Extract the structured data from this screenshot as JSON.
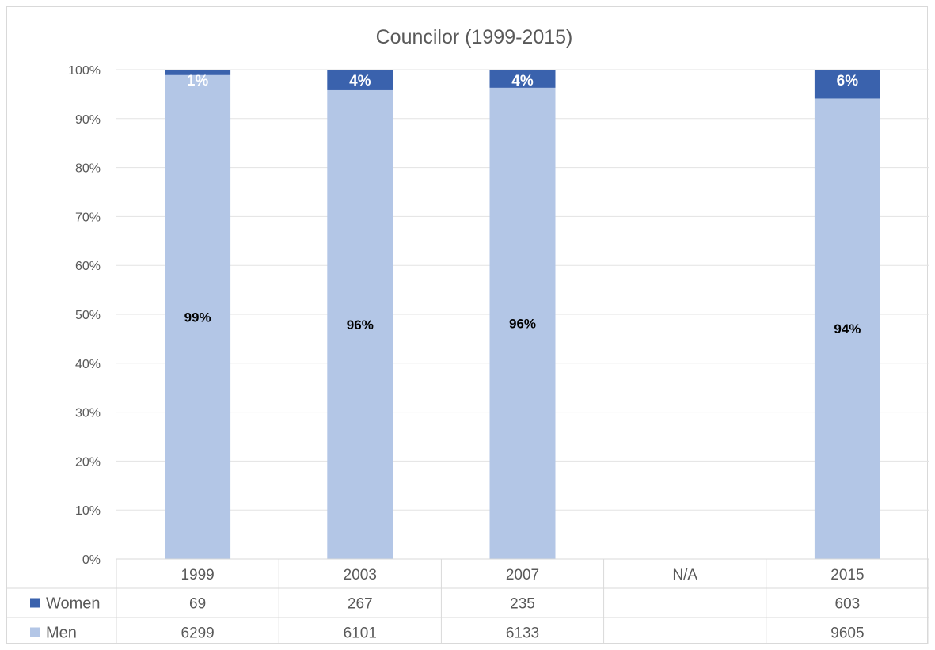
{
  "colors": {
    "women": "#3a62ad",
    "men": "#b3c6e6",
    "grid": "#e3e3e3",
    "text": "#595959"
  },
  "chart_data": {
    "type": "bar",
    "stacked": "percent",
    "title": "Councilor (1999-2015)",
    "categories": [
      "1999",
      "2003",
      "2007",
      "N/A",
      "2015"
    ],
    "y_ticks": [
      "0%",
      "10%",
      "20%",
      "30%",
      "40%",
      "50%",
      "60%",
      "70%",
      "80%",
      "90%",
      "100%"
    ],
    "ylim": [
      0,
      100
    ],
    "grid": true,
    "legend_placement": "data-table",
    "series": [
      {
        "name": "Men",
        "values": [
          6299,
          6101,
          6133,
          null,
          9605
        ],
        "table_values": [
          "6299",
          "6101",
          "6133",
          "",
          "9605"
        ],
        "percent_values": [
          98.9,
          95.8,
          96.3,
          null,
          94.1
        ],
        "labels": [
          "99%",
          "96%",
          "96%",
          "",
          "94%"
        ]
      },
      {
        "name": "Women",
        "values": [
          69,
          267,
          235,
          null,
          603
        ],
        "table_values": [
          "69",
          "267",
          "235",
          "",
          "603"
        ],
        "percent_values": [
          1.1,
          4.2,
          3.7,
          null,
          5.9
        ],
        "labels": [
          "1%",
          "4%",
          "4%",
          "",
          "6%"
        ]
      }
    ]
  }
}
